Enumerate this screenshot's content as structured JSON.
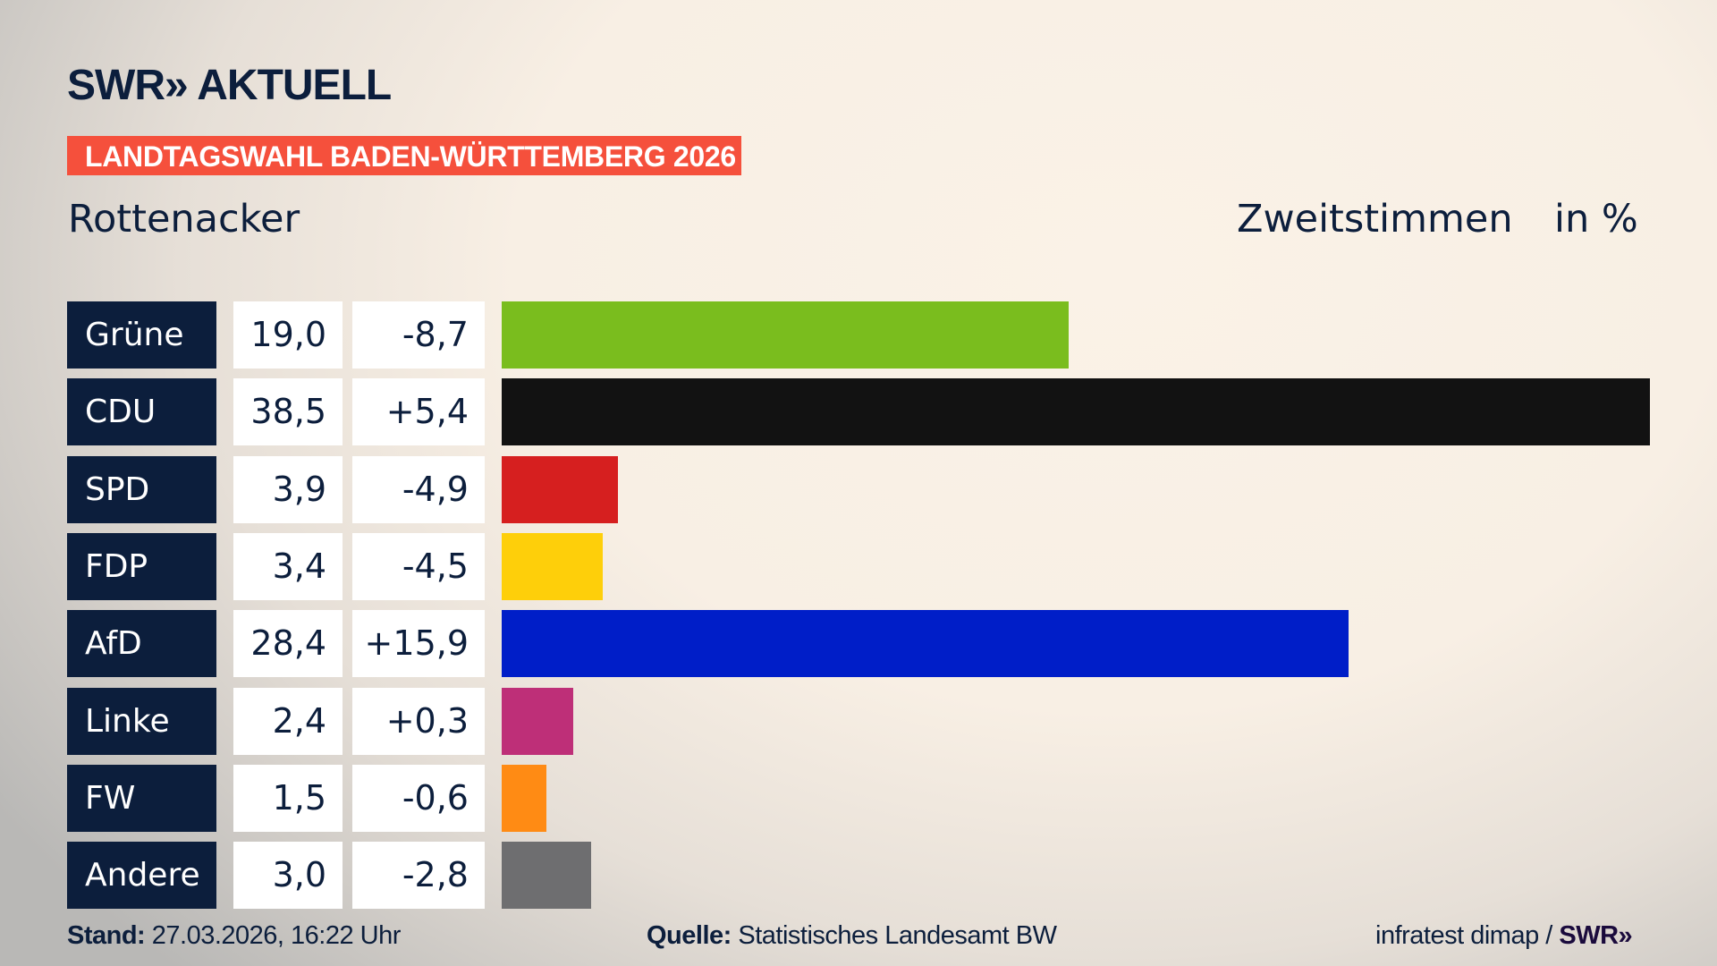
{
  "header": {
    "logo": "SWR» AKTUELL",
    "banner": "LANDTAGSWAHL BADEN-WÜRTTEMBERG 2026",
    "place": "Rottenacker",
    "metric": "Zweitstimmen",
    "unit": "in %"
  },
  "chart_data": {
    "type": "bar",
    "orientation": "horizontal",
    "categories": [
      "Grüne",
      "CDU",
      "SPD",
      "FDP",
      "AfD",
      "Linke",
      "FW",
      "Andere"
    ],
    "values": [
      19.0,
      38.5,
      3.9,
      3.4,
      28.4,
      2.4,
      1.5,
      3.0
    ],
    "value_labels": [
      "19,0",
      "38,5",
      "3,9",
      "3,4",
      "28,4",
      "2,4",
      "1,5",
      "3,0"
    ],
    "diff_labels": [
      "-8,7",
      "+5,4",
      "-4,9",
      "-4,5",
      "+15,9",
      "+0,3",
      "-0,6",
      "-2,8"
    ],
    "colors": [
      "#7abd1e",
      "#121212",
      "#d61f1f",
      "#fecf0a",
      "#001ec8",
      "#be2f78",
      "#ff8b14",
      "#6e6e70"
    ],
    "xlim": [
      0,
      38.5
    ]
  },
  "footer": {
    "stand_label": "Stand:",
    "stand_value": "27.03.2026, 16:22 Uhr",
    "source_label": "Quelle:",
    "source_value": "Statistisches Landesamt BW",
    "credit": "infratest dimap /",
    "credit_logo": "SWR»"
  }
}
